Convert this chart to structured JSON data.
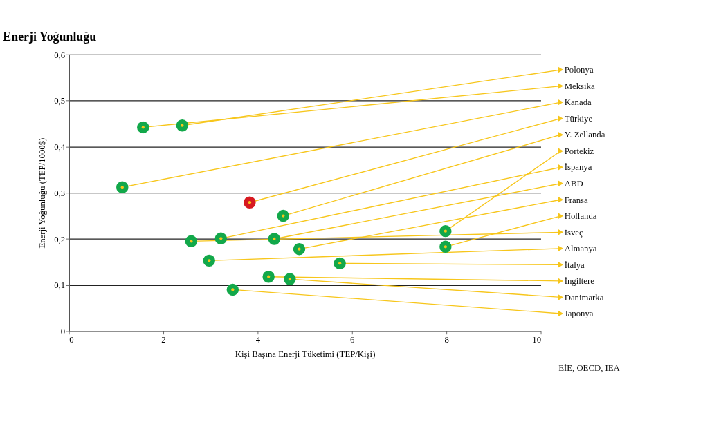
{
  "chart_data": {
    "type": "scatter",
    "title": "Enerji Yoğunluğu",
    "xlabel": "Kişi Başına Enerji Tüketimi (TEP/Kişi)",
    "ylabel": "Enerji Yoğunluğu (TEP/1000$)",
    "series": [
      {
        "x": [
          2.4,
          1.57,
          1.13,
          3.83,
          4.54,
          7.98,
          3.22,
          4.35,
          4.88,
          7.98,
          2.59,
          2.97,
          5.74,
          4.23,
          4.68,
          3.47
        ],
        "values": [
          0.446,
          0.442,
          0.312,
          0.279,
          0.25,
          0.217,
          0.201,
          0.2,
          0.178,
          0.183,
          0.195,
          0.153,
          0.147,
          0.118,
          0.113,
          0.09
        ],
        "colors": [
          "#12a84a",
          "#12a84a",
          "#12a84a",
          "#d71920",
          "#12a84a",
          "#12a84a",
          "#12a84a",
          "#12a84a",
          "#12a84a",
          "#12a84a",
          "#12a84a",
          "#12a84a",
          "#12a84a",
          "#12a84a",
          "#12a84a",
          "#12a84a"
        ]
      }
    ],
    "xlim": [
      0,
      10
    ],
    "xticks": [
      0,
      2,
      4,
      6,
      8,
      10
    ],
    "ylim": [
      0,
      0.6
    ],
    "yticks": [
      0,
      {
        "value": 0.1,
        "label": "0,1"
      },
      {
        "value": 0.2,
        "label": "0,2"
      },
      {
        "value": 0.3,
        "label": "0,3"
      },
      {
        "value": 0.4,
        "label": "0,4"
      },
      {
        "value": 0.5,
        "label": "0,5"
      },
      {
        "value": 0.6,
        "label": "0,6"
      }
    ],
    "grid": "y",
    "marker": "circle",
    "annotations": [
      {
        "text": "Polonya",
        "x": 2.4,
        "y": 0.446
      },
      {
        "text": "Meksika",
        "x": 1.57,
        "y": 0.442
      },
      {
        "text": "Kanada",
        "x": 1.13,
        "y": 0.312
      },
      {
        "text": "Türkiye",
        "x": 3.83,
        "y": 0.279
      },
      {
        "text": "Y. Zellanda",
        "x": 4.54,
        "y": 0.25
      },
      {
        "text": "Portekiz",
        "x": 7.98,
        "y": 0.217
      },
      {
        "text": "İspanya",
        "x": 3.22,
        "y": 0.201
      },
      {
        "text": "ABD",
        "x": 4.35,
        "y": 0.2
      },
      {
        "text": "Fransa",
        "x": 4.88,
        "y": 0.178
      },
      {
        "text": "Hollanda",
        "x": 7.98,
        "y": 0.183
      },
      {
        "text": "İsveç",
        "x": 2.59,
        "y": 0.195
      },
      {
        "text": "Almanya",
        "x": 2.97,
        "y": 0.153
      },
      {
        "text": "İtalya",
        "x": 5.74,
        "y": 0.147
      },
      {
        "text": "İngiltere",
        "x": 4.23,
        "y": 0.118
      },
      {
        "text": "Danimarka",
        "x": 4.68,
        "y": 0.113
      },
      {
        "text": "Japonya",
        "x": 3.47,
        "y": 0.09
      },
      "EİE, OECD, IEA"
    ]
  }
}
